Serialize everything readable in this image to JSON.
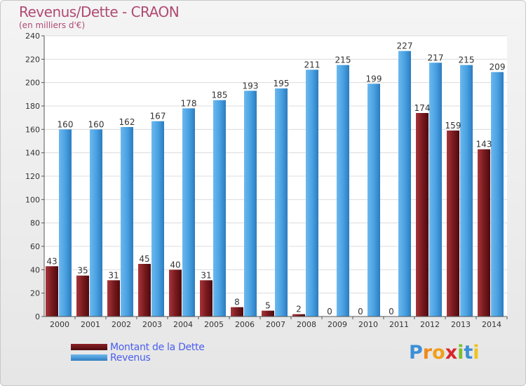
{
  "title": "Revenus/Dette - CRAON",
  "subtitle": "(en milliers d'€)",
  "logo_text": "Proxiti",
  "colors": {
    "debt": "#6e1418",
    "revenue": "#3c94d8",
    "title": "#b04a74",
    "legend_text": "#4a5ef0"
  },
  "chart_data": {
    "type": "bar",
    "categories": [
      "2000",
      "2001",
      "2002",
      "2003",
      "2004",
      "2005",
      "2006",
      "2007",
      "2008",
      "2009",
      "2010",
      "2011",
      "2012",
      "2013",
      "2014"
    ],
    "series": [
      {
        "name": "Montant de la Dette",
        "values": [
          43,
          35,
          31,
          45,
          40,
          31,
          8,
          5,
          2,
          0,
          0,
          0,
          174,
          159,
          143
        ]
      },
      {
        "name": "Revenus",
        "values": [
          160,
          160,
          162,
          167,
          178,
          185,
          193,
          195,
          211,
          215,
          199,
          227,
          217,
          215,
          209
        ]
      }
    ],
    "ylim": [
      0,
      240
    ],
    "yticks": [
      0,
      20,
      40,
      60,
      80,
      100,
      120,
      140,
      160,
      180,
      200,
      220,
      240
    ],
    "grid": true,
    "legend": "bottom-left"
  }
}
